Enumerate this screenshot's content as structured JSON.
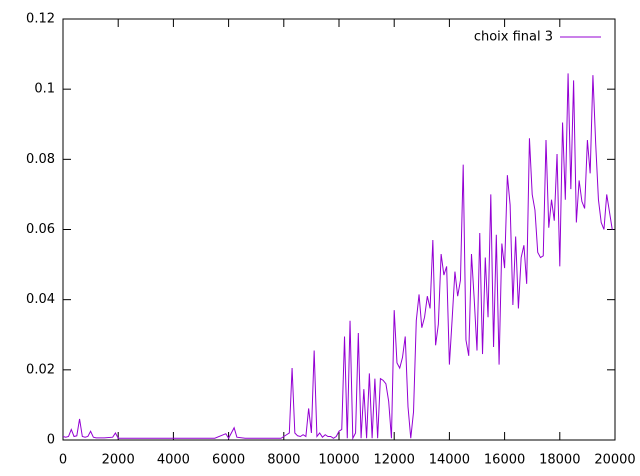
{
  "chart_data": {
    "type": "line",
    "x": [
      0,
      100,
      200,
      300,
      400,
      500,
      600,
      700,
      800,
      900,
      1000,
      1100,
      1200,
      1500,
      1800,
      1900,
      2000,
      2500,
      3000,
      3500,
      4000,
      4500,
      5000,
      5500,
      5900,
      6000,
      6200,
      6300,
      6600,
      7000,
      7500,
      7900,
      8000,
      8100,
      8200,
      8300,
      8400,
      8500,
      8600,
      8700,
      8800,
      8900,
      9000,
      9100,
      9200,
      9300,
      9400,
      9500,
      9600,
      9700,
      9800,
      9900,
      10000,
      10100,
      10200,
      10300,
      10400,
      10500,
      10600,
      10700,
      10800,
      10900,
      11000,
      11100,
      11200,
      11300,
      11400,
      11500,
      11600,
      11700,
      11800,
      11900,
      12000,
      12100,
      12200,
      12300,
      12400,
      12500,
      12600,
      12700,
      12800,
      12900,
      13000,
      13100,
      13200,
      13300,
      13400,
      13500,
      13600,
      13700,
      13800,
      13900,
      14000,
      14100,
      14200,
      14300,
      14400,
      14500,
      14600,
      14700,
      14800,
      14900,
      15000,
      15100,
      15200,
      15300,
      15400,
      15500,
      15600,
      15700,
      15800,
      15900,
      16000,
      16100,
      16200,
      16300,
      16400,
      16500,
      16600,
      16700,
      16800,
      16900,
      17000,
      17100,
      17200,
      17300,
      17400,
      17500,
      17600,
      17700,
      17800,
      17900,
      18000,
      18100,
      18200,
      18300,
      18400,
      18500,
      18600,
      18700,
      18800,
      18900,
      19000,
      19100,
      19200,
      19300,
      19400,
      19500,
      19600,
      19700,
      19800,
      19900
    ],
    "series": [
      {
        "name": "choix final 3",
        "color": "#9400d3",
        "values": [
          0.001,
          0.0008,
          0.001,
          0.003,
          0.001,
          0.0012,
          0.006,
          0.001,
          0.0008,
          0.001,
          0.0025,
          0.0008,
          0.0006,
          0.0006,
          0.0008,
          0.002,
          0.0005,
          0.0005,
          0.0005,
          0.0005,
          0.0005,
          0.0005,
          0.0005,
          0.0005,
          0.0018,
          0.0005,
          0.0035,
          0.0008,
          0.0005,
          0.0005,
          0.0005,
          0.0005,
          0.001,
          0.0015,
          0.002,
          0.0205,
          0.002,
          0.0012,
          0.001,
          0.0015,
          0.001,
          0.009,
          0.002,
          0.0255,
          0.001,
          0.002,
          0.0008,
          0.0015,
          0.001,
          0.001,
          0.0005,
          0.001,
          0.0025,
          0.003,
          0.0295,
          0.0005,
          0.034,
          0.0005,
          0.002,
          0.0305,
          0.0005,
          0.0145,
          0.0005,
          0.019,
          0.0005,
          0.0175,
          0.0005,
          0.0175,
          0.017,
          0.016,
          0.011,
          0.0005,
          0.037,
          0.022,
          0.0205,
          0.0235,
          0.0295,
          0.0095,
          0.0005,
          0.008,
          0.034,
          0.0415,
          0.032,
          0.035,
          0.041,
          0.0375,
          0.057,
          0.027,
          0.033,
          0.053,
          0.047,
          0.0495,
          0.0215,
          0.0345,
          0.048,
          0.041,
          0.0455,
          0.0785,
          0.0285,
          0.024,
          0.053,
          0.04,
          0.0255,
          0.059,
          0.0245,
          0.052,
          0.035,
          0.07,
          0.0265,
          0.0585,
          0.0215,
          0.056,
          0.049,
          0.0755,
          0.067,
          0.0385,
          0.058,
          0.0375,
          0.052,
          0.0555,
          0.0445,
          0.086,
          0.07,
          0.0655,
          0.0535,
          0.052,
          0.0525,
          0.0855,
          0.0605,
          0.0685,
          0.0625,
          0.0815,
          0.0495,
          0.0905,
          0.0685,
          0.1045,
          0.0715,
          0.1025,
          0.062,
          0.074,
          0.068,
          0.066,
          0.0855,
          0.076,
          0.104,
          0.0845,
          0.0685,
          0.062,
          0.06,
          0.07,
          0.065,
          0.06
        ]
      }
    ],
    "xlim": [
      0,
      20000
    ],
    "xticks": [
      0,
      2000,
      4000,
      6000,
      8000,
      10000,
      12000,
      14000,
      16000,
      18000,
      20000
    ],
    "ylim": [
      0,
      0.12
    ],
    "yticks": [
      0,
      0.02,
      0.04,
      0.06,
      0.08,
      0.1,
      0.12
    ],
    "grid": false,
    "legend": "top-right"
  }
}
